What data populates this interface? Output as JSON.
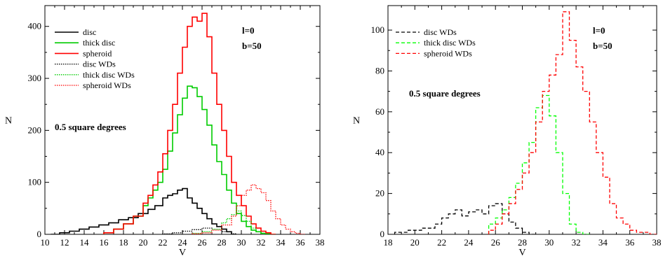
{
  "chart_data": [
    {
      "type": "line",
      "step": true,
      "xlabel": "V",
      "ylabel": "N",
      "xlim": [
        10,
        38
      ],
      "ylim": [
        0,
        440
      ],
      "xticks": [
        10,
        12,
        14,
        16,
        18,
        20,
        22,
        24,
        26,
        28,
        30,
        32,
        34,
        36,
        38
      ],
      "yticks": [
        0,
        100,
        200,
        300,
        400
      ],
      "legend_position": "top-left",
      "annotations": [
        "l=0",
        "b=50",
        "0.5 square degrees"
      ],
      "series": [
        {
          "name": "disc",
          "color": "#000000",
          "style": "solid",
          "x": [
            10.6,
            11.5,
            12.5,
            13.5,
            14.5,
            15.5,
            16.5,
            17.5,
            18.5,
            19.5,
            20.5,
            21.2,
            22.0,
            22.5,
            23.0,
            23.5,
            24.0,
            24.5,
            25.0,
            25.5,
            26.0,
            26.5,
            27.0,
            27.5,
            28.0,
            28.5,
            29.0
          ],
          "y": [
            0,
            3,
            6,
            10,
            14,
            18,
            22,
            28,
            32,
            40,
            48,
            55,
            70,
            75,
            78,
            85,
            88,
            70,
            60,
            50,
            40,
            30,
            20,
            15,
            10,
            5,
            0
          ]
        },
        {
          "name": "thick disc",
          "color": "#00cc00",
          "style": "solid",
          "x": [
            16.0,
            17.0,
            18.0,
            19.0,
            20.0,
            20.5,
            21.0,
            21.5,
            22.0,
            22.5,
            23.0,
            23.5,
            24.0,
            24.5,
            25.0,
            25.5,
            26.0,
            26.5,
            27.0,
            27.5,
            28.0,
            28.5,
            29.0,
            29.5,
            30.0,
            30.5,
            31.0,
            31.5,
            32.0,
            32.5,
            33.0
          ],
          "y": [
            3,
            10,
            20,
            35,
            55,
            70,
            85,
            100,
            125,
            160,
            195,
            230,
            262,
            285,
            282,
            265,
            240,
            210,
            172,
            140,
            115,
            85,
            60,
            40,
            25,
            15,
            8,
            5,
            2,
            1,
            0
          ]
        },
        {
          "name": "spheroid",
          "color": "#ff0000",
          "style": "solid",
          "x": [
            16.0,
            17.0,
            18.0,
            19.0,
            20.0,
            20.5,
            21.0,
            21.5,
            22.0,
            22.5,
            23.0,
            23.5,
            24.0,
            24.5,
            25.0,
            25.5,
            26.0,
            26.5,
            27.0,
            27.5,
            28.0,
            28.5,
            29.0,
            29.5,
            30.0,
            30.5,
            31.0,
            31.5,
            32.0,
            32.5,
            33.0
          ],
          "y": [
            3,
            10,
            20,
            35,
            60,
            75,
            95,
            120,
            155,
            200,
            250,
            310,
            360,
            400,
            418,
            410,
            425,
            380,
            310,
            250,
            200,
            150,
            100,
            75,
            55,
            35,
            20,
            12,
            6,
            3,
            0
          ]
        },
        {
          "name": "disc WDs",
          "color": "#000000",
          "style": "dotted",
          "x": [
            22.0,
            23.0,
            24.0,
            25.0,
            26.0,
            27.0,
            28.0,
            29.0
          ],
          "y": [
            1,
            3,
            6,
            9,
            12,
            10,
            5,
            1
          ]
        },
        {
          "name": "thick disc WDs",
          "color": "#00cc00",
          "style": "dotted",
          "x": [
            25.0,
            26.0,
            27.0,
            28.0,
            28.5,
            29.0,
            29.5,
            30.0,
            30.5,
            31.0,
            31.5,
            32.0
          ],
          "y": [
            2,
            5,
            10,
            22,
            30,
            38,
            45,
            36,
            25,
            12,
            5,
            0
          ]
        },
        {
          "name": "spheroid WDs",
          "color": "#ff0000",
          "style": "dotted",
          "x": [
            25.0,
            26.0,
            27.0,
            28.0,
            29.0,
            29.5,
            30.0,
            30.5,
            31.0,
            31.5,
            32.0,
            32.5,
            33.0,
            33.5,
            34.0,
            34.5,
            35.0,
            35.5,
            36.0
          ],
          "y": [
            1,
            3,
            8,
            18,
            35,
            55,
            75,
            85,
            95,
            88,
            80,
            65,
            45,
            30,
            18,
            10,
            5,
            2,
            0
          ]
        }
      ]
    },
    {
      "type": "line",
      "step": true,
      "xlabel": "V",
      "ylabel": "N",
      "xlim": [
        18,
        38
      ],
      "ylim": [
        0,
        112
      ],
      "xticks": [
        18,
        20,
        22,
        24,
        26,
        28,
        30,
        32,
        34,
        36,
        38
      ],
      "xtick_labels": [
        "18",
        "20",
        "22",
        "24",
        "26",
        "28",
        "30",
        "32",
        "34",
        "36",
        "38"
      ],
      "yticks": [
        0,
        20,
        40,
        60,
        80,
        100
      ],
      "legend_position": "top-left",
      "annotations": [
        "l=0",
        "b=50",
        "0.5 square degrees"
      ],
      "series": [
        {
          "name": "disc WDs",
          "color": "#000000",
          "style": "dashed",
          "x": [
            18.5,
            19.5,
            20.5,
            21.5,
            22.0,
            22.5,
            23.0,
            23.5,
            24.0,
            24.5,
            25.0,
            25.5,
            26.0,
            26.5,
            27.0,
            27.5,
            28.0,
            28.5
          ],
          "y": [
            1,
            2,
            3,
            5,
            8,
            10,
            12,
            9,
            11,
            12,
            10,
            14,
            15,
            10,
            6,
            3,
            1,
            0
          ]
        },
        {
          "name": "thick disc WDs",
          "color": "#00ff00",
          "style": "dashed",
          "x": [
            25.5,
            26.0,
            26.5,
            27.0,
            27.5,
            28.0,
            28.5,
            29.0,
            29.5,
            30.0,
            30.5,
            31.0,
            31.5,
            32.0,
            32.5
          ],
          "y": [
            5,
            8,
            12,
            18,
            25,
            35,
            45,
            62,
            68,
            58,
            40,
            20,
            5,
            1,
            0
          ]
        },
        {
          "name": "spheroid WDs",
          "color": "#ff0000",
          "style": "dashed",
          "x": [
            25.5,
            26.0,
            26.5,
            27.0,
            27.5,
            28.0,
            28.5,
            29.0,
            29.5,
            30.0,
            30.5,
            31.0,
            31.5,
            32.0,
            32.5,
            33.0,
            33.5,
            34.0,
            34.5,
            35.0,
            35.5,
            36.0,
            36.5,
            37.0,
            37.5
          ],
          "y": [
            2,
            5,
            10,
            15,
            22,
            30,
            40,
            55,
            70,
            78,
            88,
            109,
            95,
            82,
            70,
            55,
            40,
            28,
            15,
            8,
            5,
            2,
            1,
            1,
            0
          ]
        }
      ]
    }
  ]
}
